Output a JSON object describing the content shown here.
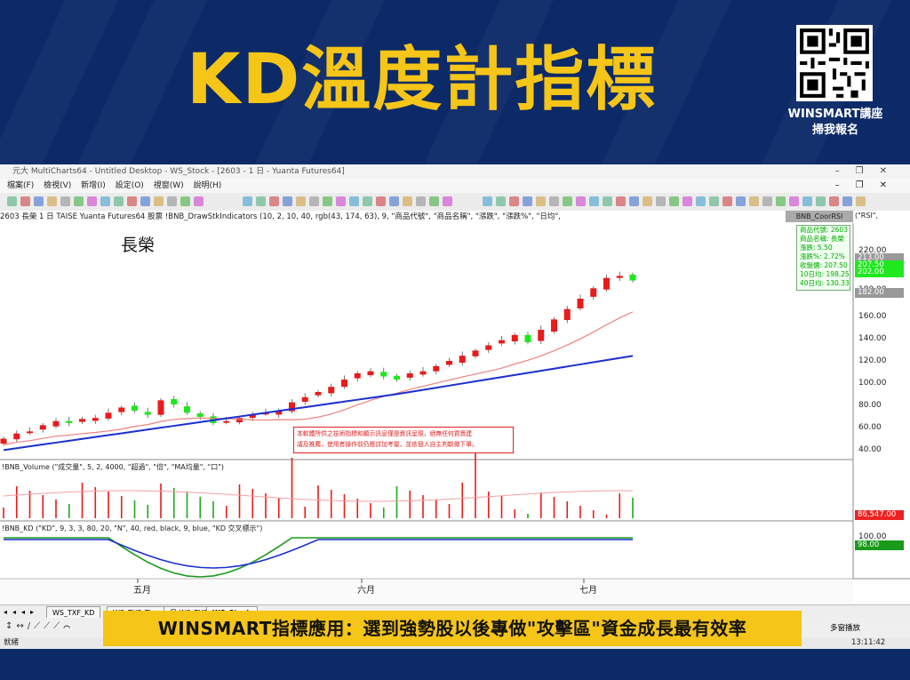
{
  "banner": {
    "title": "KD溫度計指標",
    "qr_label_line1": "WINSMART講座",
    "qr_label_line2": "掃我報名"
  },
  "window": {
    "title": "元大 MultiCharts64 - Untitled Desktop - WS_Stock - [2603 - 1 日 - Yuanta Futures64]",
    "menu": [
      "檔案(F)",
      "檢視(V)",
      "新增(I)",
      "設定(O)",
      "視窗(W)",
      "說明(H)"
    ],
    "info_line": "2603  長榮 1 日  TAISE  Yuanta Futures64  股票  !BNB_DrawStkIndicators  (10, 2, 10, 40, rgb(43, 174, 63), 9, \"商品代號\", \"商品名稱\", \"漲跌\", \"漲跌%\", \"日均\",",
    "corr_button": "BNB_CoorRSI",
    "corr_suffix": "(\"RSI\","
  },
  "chart": {
    "stock_name": "長榮",
    "info_box": [
      "商品代號: 2603",
      "商品名稱: 長榮",
      "漲跌: 5.50",
      "漲跌%: 2.72%",
      "收盤價: 207.50",
      "10日均: 198.25",
      "40日均: 130.33"
    ],
    "disclaimer_line1": "本軟體所供之技術指標和顯示訊息僅是資訊呈現，絕無任何買賣建",
    "disclaimer_line2": "議及推薦，使用者操作前仍應詳加考量，並依個人自主判斷做下單。",
    "price_axis": [
      "220.00",
      "180.00",
      "160.00",
      "140.00",
      "120.00",
      "100.00",
      "80.00",
      "60.00",
      "40.00"
    ],
    "price_tags": {
      "t1": "213.00",
      "t2": "207.50",
      "t3": "202.00",
      "t4": "182.00"
    },
    "volume_label": "!BNB_Volume   (\"成交量\", 5, 2, 4000, \"超過\", \"倍\", \"MA均量\", \"口\")",
    "volume_tag": "86,547.00",
    "kd_label": "!BNB_KD   (\"KD\", 9, 3, 3, 80, 20, \"N\", 40, red, black, 9, blue, \"KD 交叉標示\")",
    "kd_axis": [
      "100.00",
      "98.00"
    ],
    "months": [
      "五月",
      "六月",
      "七月"
    ]
  },
  "tabs": [
    "WS_TXF_KD",
    "WS_TXF_Tiny",
    "日 WS_TXF",
    "WS_Stock"
  ],
  "status": {
    "left": "就緒",
    "right_btn": "多窗播放",
    "time": "13:11:42"
  },
  "caption": "WINSMART指標應用：選到強勢股以後專做\"攻擊區\"資金成長最有效率",
  "chart_data": {
    "type": "candlestick",
    "symbol": "2603",
    "name": "長榮",
    "x": [
      "五月",
      "六月",
      "七月"
    ],
    "ylim": [
      40,
      220
    ],
    "close_approx": [
      55,
      60,
      62,
      68,
      72,
      70,
      74,
      75,
      80,
      85,
      82,
      78,
      92,
      88,
      80,
      76,
      70,
      72,
      75,
      78,
      80,
      82,
      90,
      95,
      100,
      105,
      112,
      118,
      120,
      115,
      112,
      118,
      120,
      125,
      130,
      135,
      140,
      145,
      150,
      155,
      148,
      160,
      170,
      180,
      190,
      200,
      210,
      212,
      207.5
    ],
    "ma10_end": 198.25,
    "ma40_end": 130.33
  }
}
